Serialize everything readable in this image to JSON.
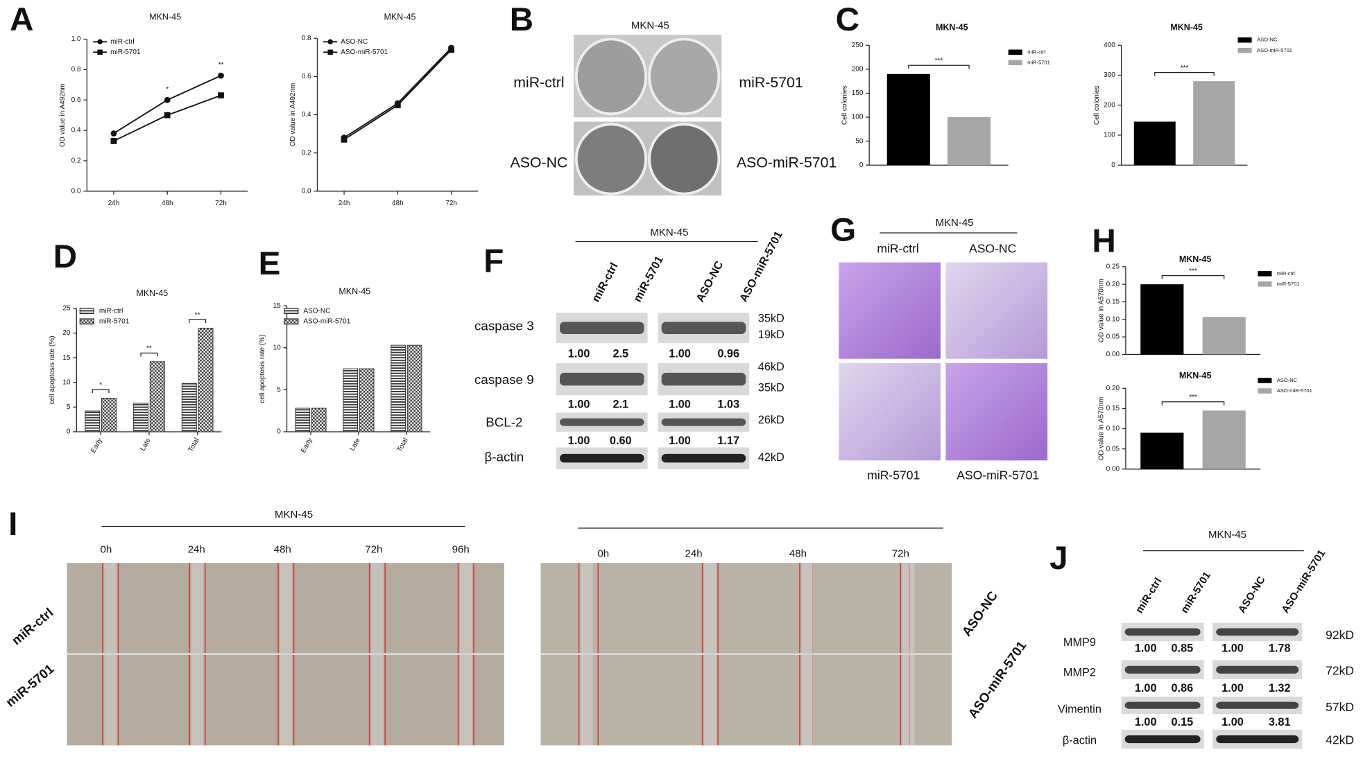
{
  "chart_data": [
    {
      "type": "line",
      "title": "MKN-45",
      "ylabel": "OD value in A492nm",
      "categories": [
        "24h",
        "48h",
        "72h"
      ],
      "series": [
        {
          "name": "miR-ctrl",
          "color": "#111111",
          "marker": "circle",
          "values": [
            0.38,
            0.6,
            0.76
          ]
        },
        {
          "name": "miR-5701",
          "color": "#111111",
          "marker": "square",
          "values": [
            0.33,
            0.5,
            0.63
          ]
        }
      ],
      "ylim": [
        0,
        1
      ],
      "yticks": [
        {
          "value": 0,
          "label": "0.0"
        },
        0.2,
        0.4,
        0.6,
        0.8,
        {
          "value": 1,
          "label": "1.0"
        }
      ],
      "annotations": [
        null,
        "*",
        "**"
      ]
    },
    {
      "type": "line",
      "title": "MKN-45",
      "ylabel": "OD value in A492nm",
      "categories": [
        "24h",
        "48h",
        "72h"
      ],
      "series": [
        {
          "name": "ASO-NC",
          "color": "#111111",
          "marker": "circle",
          "values": [
            0.28,
            0.46,
            0.75
          ]
        },
        {
          "name": "ASO-miR-5701",
          "color": "#111111",
          "marker": "square",
          "values": [
            0.27,
            0.45,
            0.74
          ]
        }
      ],
      "ylim": [
        0,
        0.8
      ],
      "yticks": [
        {
          "value": 0,
          "label": "0.0"
        },
        0.2,
        0.4,
        0.6,
        0.8
      ]
    },
    {
      "type": "bar",
      "title": "MKN-45",
      "ylabel": "Cell colonies",
      "categories": [
        null
      ],
      "series": [
        {
          "name": "miR-ctrl",
          "color": "#000000",
          "values": [
            190
          ]
        },
        {
          "name": "miR-5701",
          "color": "#a6a6a6",
          "values": [
            100
          ]
        }
      ],
      "ylim": [
        0,
        250
      ],
      "yticks": [
        0,
        50,
        100,
        150,
        200,
        250
      ],
      "annotations": [
        "***"
      ]
    },
    {
      "type": "bar",
      "title": "MKN-45",
      "ylabel": "Cell colonies",
      "categories": [
        null
      ],
      "series": [
        {
          "name": "ASO-NC",
          "color": "#000000",
          "values": [
            145
          ]
        },
        {
          "name": "ASO-miR-5701",
          "color": "#a6a6a6",
          "values": [
            280
          ]
        }
      ],
      "ylim": [
        0,
        400
      ],
      "yticks": [
        0,
        100,
        200,
        300,
        400
      ],
      "annotations": [
        "***"
      ]
    },
    {
      "type": "bar",
      "title": "MKN-45",
      "ylabel": "cell apoptosis rate (%)",
      "categories": [
        "Early",
        "Late",
        "Total"
      ],
      "series": [
        {
          "name": "miR-ctrl",
          "color": "#333333",
          "pattern": "stripes",
          "values": [
            4.2,
            5.8,
            9.8
          ]
        },
        {
          "name": "miR-5701",
          "color": "#333333",
          "pattern": "checker",
          "values": [
            6.8,
            14.2,
            21
          ]
        }
      ],
      "ylim": [
        0,
        25
      ],
      "yticks": [
        0,
        5,
        10,
        15,
        20,
        25
      ],
      "annotations": [
        "*",
        "**",
        "**"
      ]
    },
    {
      "type": "bar",
      "title": "MKN-45",
      "ylabel": "cell apoptosis rate (%)",
      "categories": [
        "Early",
        "Late",
        "Total"
      ],
      "series": [
        {
          "name": "ASO-NC",
          "color": "#333333",
          "pattern": "stripes",
          "values": [
            2.8,
            7.5,
            10.3
          ]
        },
        {
          "name": "ASO-miR-5701",
          "color": "#333333",
          "pattern": "checker",
          "values": [
            2.8,
            7.5,
            10.3
          ]
        }
      ],
      "ylim": [
        0,
        15
      ],
      "yticks": [
        0,
        5,
        10,
        15
      ]
    },
    {
      "type": "bar",
      "title": "MKN-45",
      "ylabel": "OD value in A570nm",
      "categories": [
        null
      ],
      "series": [
        {
          "name": "miR-ctrl",
          "color": "#000000",
          "values": [
            0.2
          ]
        },
        {
          "name": "miR-5701",
          "color": "#a6a6a6",
          "values": [
            0.107
          ]
        }
      ],
      "ylim": [
        0,
        0.25
      ],
      "yticks": [
        {
          "value": 0,
          "label": "0.00"
        },
        0.05,
        {
          "value": 0.1,
          "label": "0.10"
        },
        0.15,
        {
          "value": 0.2,
          "label": "0.20"
        },
        0.25
      ],
      "annotations": [
        "***"
      ]
    },
    {
      "type": "bar",
      "title": "MKN-45",
      "ylabel": "OD value in A570nm",
      "categories": [
        null
      ],
      "series": [
        {
          "name": "ASO-NC",
          "color": "#000000",
          "values": [
            0.09
          ]
        },
        {
          "name": "ASO-miR-5701",
          "color": "#a6a6a6",
          "values": [
            0.145
          ]
        }
      ],
      "ylim": [
        0,
        0.2
      ],
      "yticks": [
        {
          "value": 0,
          "label": "0.00"
        },
        0.05,
        {
          "value": 0.1,
          "label": "0.10"
        },
        0.15,
        {
          "value": 0.2,
          "label": "0.20"
        }
      ],
      "annotations": [
        "***"
      ]
    }
  ],
  "panel_letters": [
    "A",
    "B",
    "C",
    "D",
    "E",
    "F",
    "G",
    "H",
    "I",
    "J"
  ],
  "panel_b": {
    "title": "MKN-45",
    "labels": [
      "miR-ctrl",
      "miR-5701",
      "ASO-NC",
      "ASO-miR-5701"
    ]
  },
  "panel_f": {
    "title": "MKN-45",
    "lanes": [
      "miR-ctrl",
      "miR-5701",
      "ASO-NC",
      "ASO-miR-5701"
    ],
    "proteins": [
      "caspase 3",
      "caspase 9",
      "BCL-2",
      "β-actin"
    ],
    "sizes": [
      "35kD",
      "19kD",
      "46kD",
      "35kD",
      "26kD",
      "42kD"
    ],
    "quant": [
      [
        "1.00",
        "2.5",
        "1.00",
        "0.96"
      ],
      [
        "1.00",
        "2.1",
        "1.00",
        "1.03"
      ],
      [
        "1.00",
        "0.60",
        "1.00",
        "1.17"
      ]
    ]
  },
  "panel_g": {
    "title": "MKN-45",
    "top": [
      "miR-ctrl",
      "ASO-NC"
    ],
    "bottom": [
      "miR-5701",
      "ASO-miR-5701"
    ]
  },
  "panel_i": {
    "title": "MKN-45",
    "times_left": [
      "0h",
      "24h",
      "48h",
      "72h",
      "96h"
    ],
    "times_right": [
      "0h",
      "24h",
      "48h",
      "72h"
    ],
    "rows_left": [
      "miR-ctrl",
      "miR-5701"
    ],
    "rows_right": [
      "ASO-NC",
      "ASO-miR-5701"
    ]
  },
  "panel_j": {
    "title": "MKN-45",
    "lanes": [
      "miR-ctrl",
      "miR-5701",
      "ASO-NC",
      "ASO-miR-5701"
    ],
    "proteins": [
      "MMP9",
      "MMP2",
      "Vimentin",
      "β-actin"
    ],
    "sizes": [
      "92kD",
      "72kD",
      "57kD",
      "42kD"
    ],
    "quant": [
      [
        "1.00",
        "0.85",
        "1.00",
        "1.78"
      ],
      [
        "1.00",
        "0.86",
        "1.00",
        "1.32"
      ],
      [
        "1.00",
        "0.15",
        "1.00",
        "3.81"
      ]
    ]
  }
}
